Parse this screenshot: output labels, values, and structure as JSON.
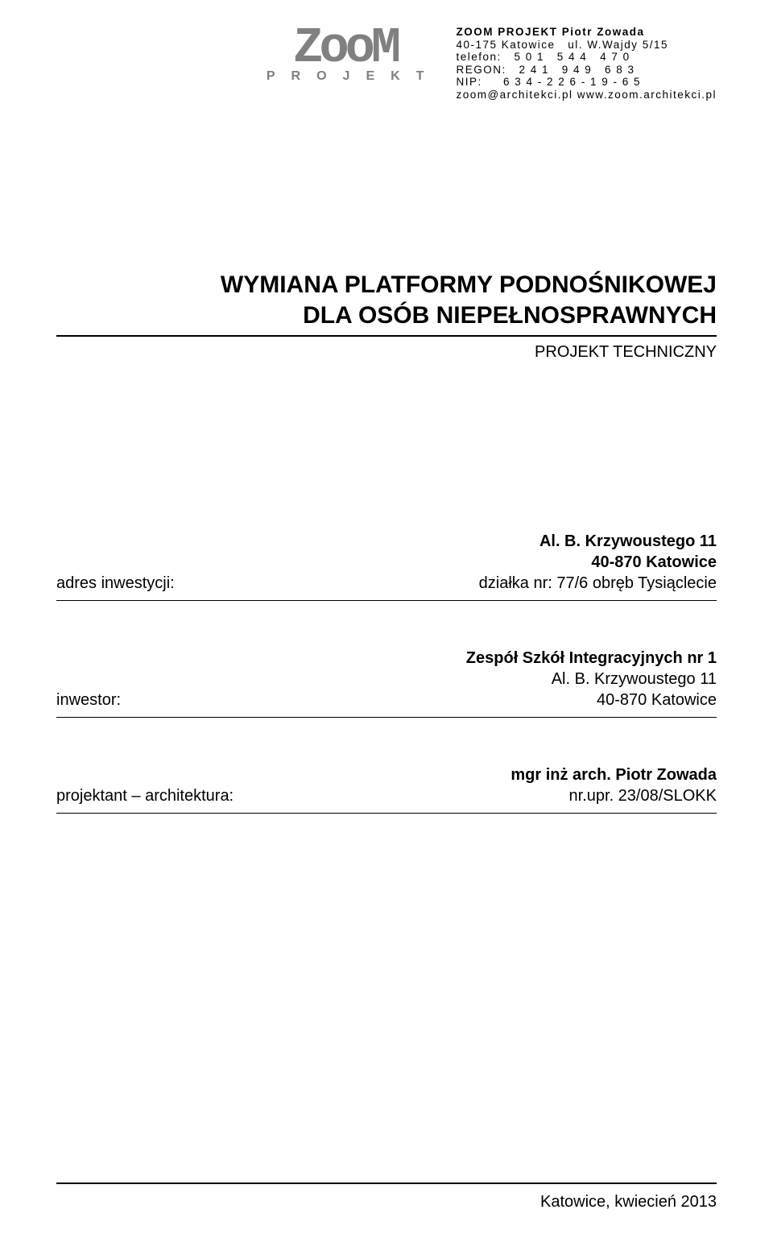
{
  "company": {
    "name": "ZOOM PROJEKT Piotr Zowada",
    "address": "40-175 Katowice   ul. W.Wajdy 5/15",
    "phone_label": "telefon:",
    "phone": "5 0 1   5 4 4   4 7 0",
    "regon_label": "REGON:",
    "regon": "2 4 1   9 4 9   6 8 3",
    "nip_label": "NIP:",
    "nip": "6 3 4 - 2 2 6 - 1 9 - 6 5",
    "contact": "zoom@architekci.pl www.zoom.architekci.pl"
  },
  "logo": {
    "word": "ZooM",
    "sub": "PROJEKT"
  },
  "title": {
    "line1": "WYMIANA PLATFORMY PODNOŚNIKOWEJ",
    "line2": "DLA OSÓB NIEPEŁNOSPRAWNYCH",
    "subtitle": "PROJEKT TECHNICZNY"
  },
  "rows": {
    "investment": {
      "label": "adres inwestycji:",
      "line1": "Al. B. Krzywoustego 11",
      "line2": "40-870 Katowice",
      "line3": "działka nr: 77/6 obręb Tysiąclecie"
    },
    "investor": {
      "label": "inwestor:",
      "line1": "Zespół Szkół Integracyjnych nr 1",
      "line2": "Al. B. Krzywoustego 11",
      "line3": "40-870 Katowice"
    },
    "designer": {
      "label": "projektant – architektura:",
      "line1": "mgr inż arch. Piotr Zowada",
      "line2": "nr.upr. 23/08/SLOKK"
    }
  },
  "footer": "Katowice, kwiecień 2013",
  "colors": {
    "text": "#000000",
    "logo_gray": "#808080",
    "background": "#ffffff"
  }
}
